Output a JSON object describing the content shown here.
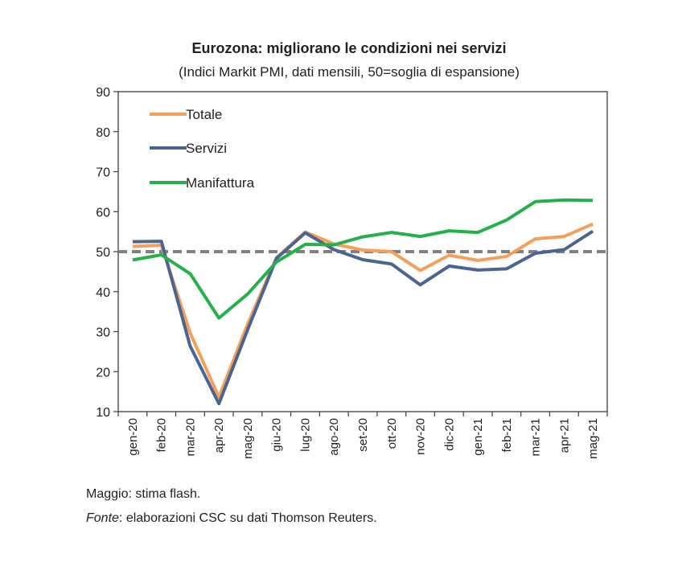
{
  "chart_data": {
    "type": "line",
    "title": "Eurozona: migliorano le condizioni nei servizi",
    "subtitle": "(Indici Markit PMI, dati mensili, 50=soglia di espansione)",
    "xlabel": "",
    "ylabel": "",
    "ylim": [
      10,
      90
    ],
    "yticks": [
      10,
      20,
      30,
      40,
      50,
      60,
      70,
      80,
      90
    ],
    "categories": [
      "gen-20",
      "feb-20",
      "mar-20",
      "apr-20",
      "mag-20",
      "giu-20",
      "lug-20",
      "ago-20",
      "set-20",
      "ott-20",
      "nov-20",
      "dic-20",
      "gen-21",
      "feb-21",
      "mar-21",
      "apr-21",
      "mag-21"
    ],
    "grid": false,
    "legend_position": "top-left",
    "series": [
      {
        "name": "Totale",
        "color": "#f4a05a",
        "values": [
          51.3,
          51.6,
          29.7,
          13.6,
          31.9,
          48.5,
          54.9,
          51.9,
          50.4,
          50.0,
          45.3,
          49.1,
          47.8,
          48.8,
          53.2,
          53.8,
          56.9
        ]
      },
      {
        "name": "Servizi",
        "color": "#4a6592",
        "values": [
          52.5,
          52.6,
          26.4,
          12.0,
          30.5,
          48.3,
          54.7,
          50.5,
          48.0,
          46.9,
          41.7,
          46.4,
          45.4,
          45.7,
          49.6,
          50.5,
          55.1
        ]
      },
      {
        "name": "Manifattura",
        "color": "#26b04a",
        "values": [
          47.9,
          49.2,
          44.5,
          33.4,
          39.4,
          47.4,
          51.8,
          51.7,
          53.7,
          54.8,
          53.8,
          55.2,
          54.8,
          57.9,
          62.5,
          62.9,
          62.8
        ]
      }
    ],
    "reference_line": {
      "value": 50,
      "color": "#808080"
    }
  },
  "notes": {
    "flash": "Maggio: stima flash.",
    "source_label": "Fonte",
    "source_text": ": elaborazioni CSC su dati Thomson Reuters."
  }
}
